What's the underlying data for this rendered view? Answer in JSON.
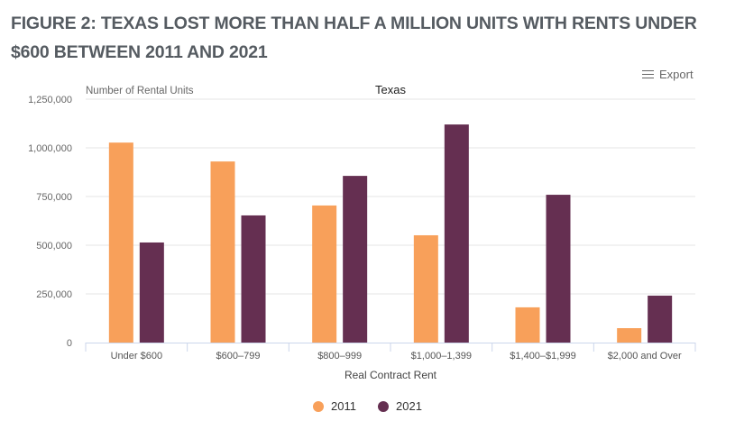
{
  "title": "FIGURE 2: TEXAS LOST MORE THAN HALF A MILLION UNITS WITH RENTS UNDER $600 BETWEEN 2011 AND 2021",
  "export_label": "Export",
  "export_icon": "hamburger-menu-icon",
  "chart_data": {
    "type": "bar",
    "title": "Texas",
    "xlabel": "Real Contract Rent",
    "ylabel": "Number of Rental Units",
    "ylim": [
      0,
      1250000
    ],
    "yticks": [
      0,
      250000,
      500000,
      750000,
      1000000,
      1250000
    ],
    "ytick_labels": [
      "0",
      "250,000",
      "500,000",
      "750,000",
      "1,000,000",
      "1,250,000"
    ],
    "grid": true,
    "legend_position": "bottom-center",
    "categories": [
      "Under $600",
      "$600–799",
      "$800–999",
      "$1,000–1,399",
      "$1,400–$1,999",
      "$2,000 and Over"
    ],
    "series": [
      {
        "name": "2011",
        "color": "#f8a05a",
        "values": [
          1027000,
          930000,
          704000,
          551000,
          181000,
          74000
        ]
      },
      {
        "name": "2021",
        "color": "#652f51",
        "values": [
          514000,
          653000,
          856000,
          1120000,
          759000,
          241000
        ]
      }
    ]
  }
}
